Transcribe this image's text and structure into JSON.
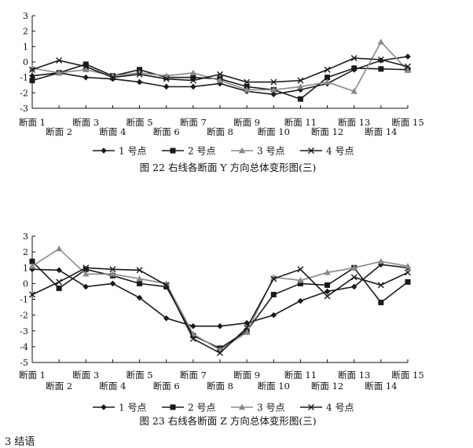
{
  "chart_data": [
    {
      "type": "line",
      "caption": "图 22   右线各断面 Y 方向总体变形图(三)",
      "ylim": [
        -3,
        3
      ],
      "yticks": [
        3,
        2,
        1,
        0,
        -1,
        -2,
        -3
      ],
      "categories": [
        "断面 1",
        "断面 2",
        "断面 3",
        "断面 4",
        "断面 5",
        "断面 6",
        "断面 7",
        "断面 8",
        "断面 9",
        "断面 10",
        "断面 11",
        "断面 12",
        "断面 13",
        "断面 14",
        "断面 15"
      ],
      "series": [
        {
          "name": "1 号点",
          "color": "#1a1a1a",
          "marker": "diamond",
          "values": [
            -0.9,
            -0.7,
            -1.0,
            -1.1,
            -1.3,
            -1.6,
            -1.6,
            -1.4,
            -1.9,
            -2.1,
            -1.8,
            -1.4,
            -0.5,
            0.1,
            0.35
          ]
        },
        {
          "name": "2 号点",
          "color": "#1a1a1a",
          "marker": "square",
          "values": [
            -1.2,
            -0.7,
            -0.15,
            -0.9,
            -0.5,
            -1.0,
            -1.0,
            -1.1,
            -1.6,
            -1.8,
            -2.4,
            -1.0,
            -0.4,
            -0.45,
            -0.5
          ]
        },
        {
          "name": "3 号点",
          "color": "#8a8a8a",
          "marker": "triangle",
          "values": [
            -0.4,
            -0.7,
            -0.5,
            -0.9,
            -0.7,
            -0.9,
            -0.7,
            -1.2,
            -1.8,
            -1.8,
            -1.6,
            -1.3,
            -1.9,
            1.3,
            -0.55
          ]
        },
        {
          "name": "4 号点",
          "color": "#1a1a1a",
          "marker": "x",
          "values": [
            -0.5,
            0.1,
            -0.3,
            -1.0,
            -0.8,
            -1.1,
            -1.2,
            -0.8,
            -1.3,
            -1.3,
            -1.2,
            -0.5,
            0.25,
            0.15,
            -0.3
          ]
        }
      ]
    },
    {
      "type": "line",
      "caption": "图 23   右线各断面 Z 方向总体变形图(三)",
      "ylim": [
        -5,
        3
      ],
      "yticks": [
        3,
        2,
        1,
        0,
        -1,
        -2,
        -3,
        -4,
        -5
      ],
      "categories": [
        "断面 1",
        "断面 2",
        "断面 3",
        "断面 4",
        "断面 5",
        "断面 6",
        "断面 7",
        "断面 8",
        "断面 9",
        "断面 10",
        "断面 11",
        "断面 12",
        "断面 13",
        "断面 14",
        "断面 15"
      ],
      "series": [
        {
          "name": "1 号点",
          "color": "#1a1a1a",
          "marker": "diamond",
          "values": [
            0.9,
            0.85,
            -0.2,
            0.0,
            -0.9,
            -2.2,
            -2.7,
            -2.7,
            -2.5,
            -2.0,
            -1.1,
            -0.5,
            -0.2,
            1.2,
            1.0
          ]
        },
        {
          "name": "2 号点",
          "color": "#1a1a1a",
          "marker": "square",
          "values": [
            1.4,
            -0.3,
            0.9,
            0.5,
            0.0,
            -0.2,
            -3.3,
            -4.1,
            -3.0,
            -0.7,
            0.0,
            -0.1,
            1.0,
            -1.2,
            0.1
          ]
        },
        {
          "name": "3 号点",
          "color": "#8a8a8a",
          "marker": "triangle",
          "values": [
            1.1,
            2.2,
            0.6,
            0.6,
            0.3,
            0.0,
            -3.2,
            -4.2,
            -3.1,
            0.4,
            0.2,
            0.7,
            1.0,
            1.4,
            1.1
          ]
        },
        {
          "name": "4 号点",
          "color": "#1a1a1a",
          "marker": "x",
          "values": [
            -0.7,
            0.1,
            1.0,
            0.9,
            0.85,
            -0.1,
            -3.5,
            -4.4,
            -2.8,
            0.3,
            0.9,
            -0.8,
            0.4,
            -0.1,
            0.7
          ]
        }
      ]
    }
  ],
  "footer_fragment": "3   结语"
}
